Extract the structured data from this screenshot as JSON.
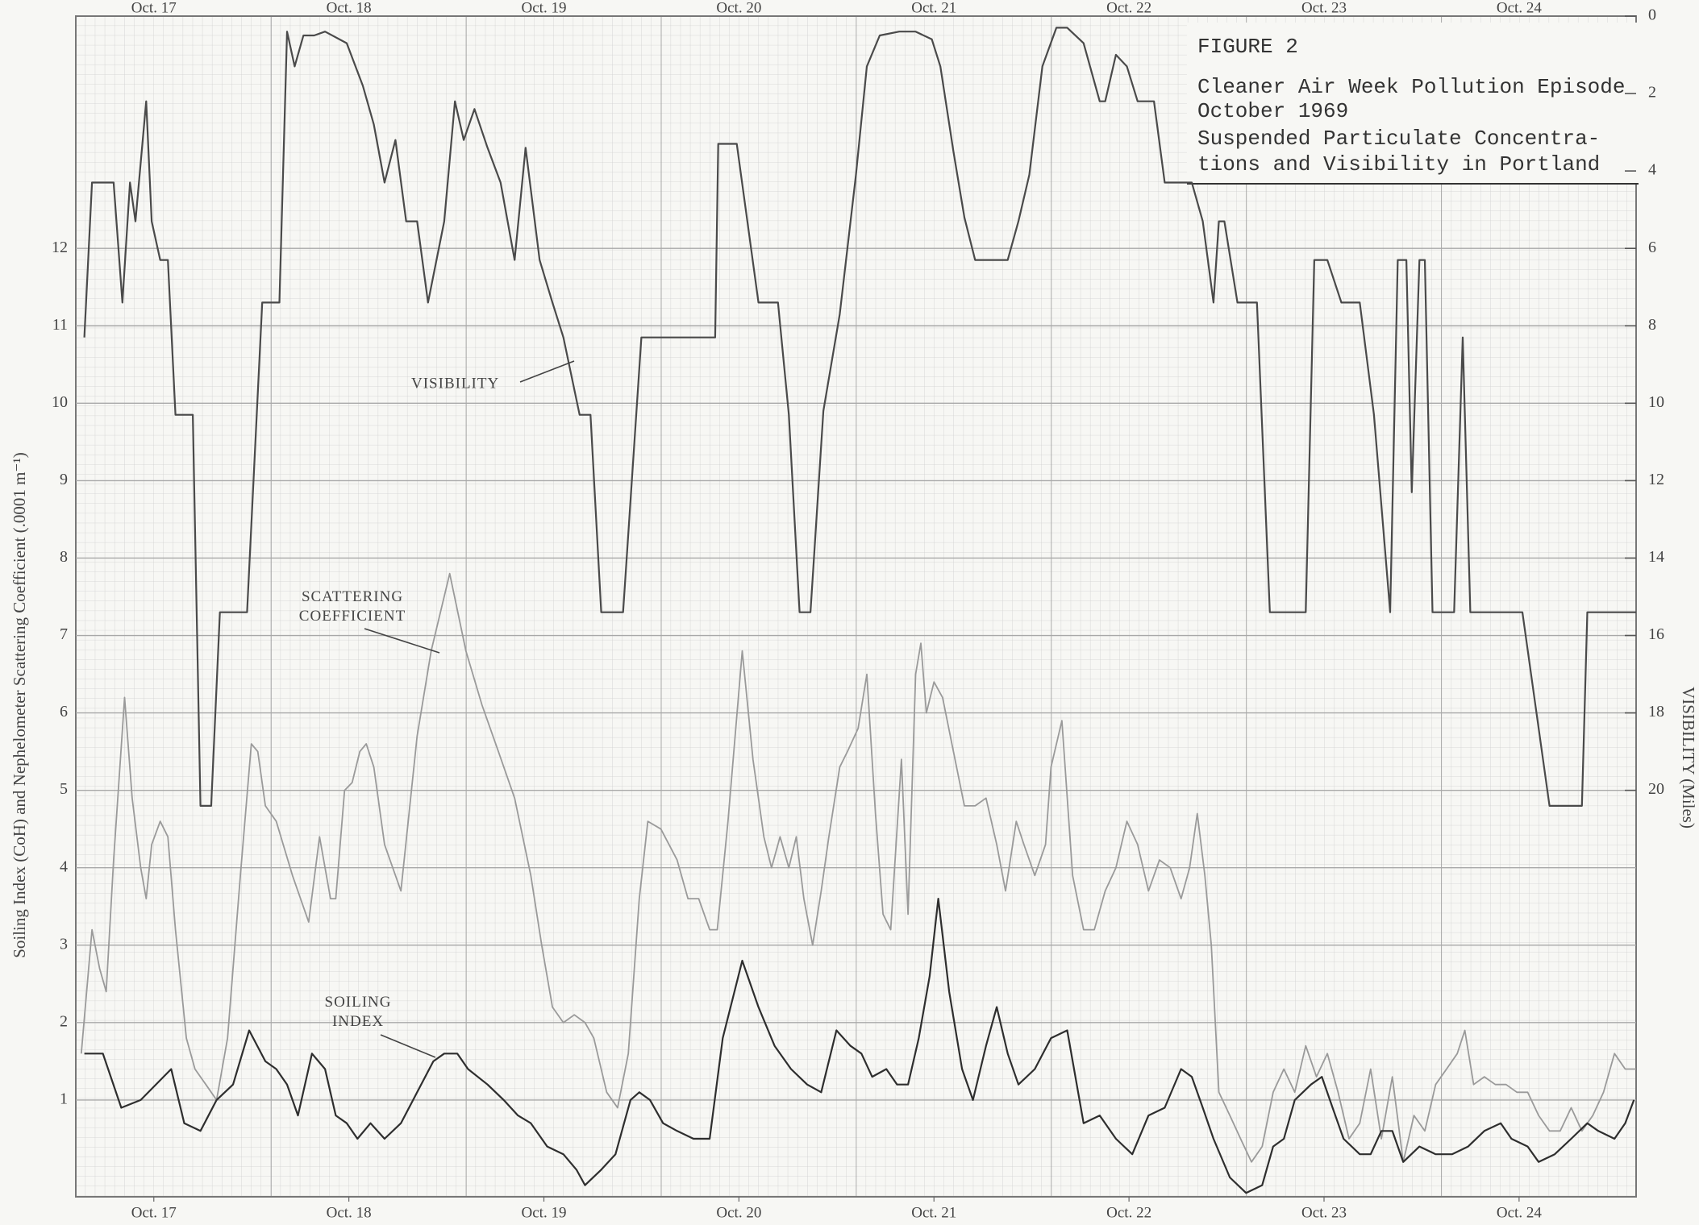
{
  "chart_data": {
    "type": "line",
    "title": "FIGURE 2",
    "subtitle": [
      "Cleaner Air Week Pollution Episode",
      "October 1969",
      "Suspended Particulate Concentra-",
      "tions and Visibility in Portland"
    ],
    "ylabel": "Soiling Index (CoH) and Nephelometer Scattering Coefficient (.0001 m⁻¹)",
    "y2label": "VISIBILITY (Miles)",
    "xlim": [
      0,
      8
    ],
    "xticks": [
      {
        "value": 0.4,
        "label": "Oct. 17"
      },
      {
        "value": 1.4,
        "label": "Oct. 18"
      },
      {
        "value": 2.4,
        "label": "Oct. 19"
      },
      {
        "value": 3.4,
        "label": "Oct. 20"
      },
      {
        "value": 4.4,
        "label": "Oct. 21"
      },
      {
        "value": 5.4,
        "label": "Oct. 22"
      },
      {
        "value": 6.4,
        "label": "Oct. 23"
      },
      {
        "value": 7.4,
        "label": "Oct. 24"
      }
    ],
    "ylim": [
      -0.25,
      15
    ],
    "yticks": [
      1,
      2,
      3,
      4,
      5,
      6,
      7,
      8,
      9,
      10,
      11,
      12
    ],
    "y2lim": [
      30.5,
      0
    ],
    "y2ticks": [
      0,
      2,
      4,
      6,
      8,
      10,
      12,
      14,
      16,
      18,
      20
    ],
    "grid": true,
    "series": [
      {
        "name": "VISIBILITY",
        "color": "#4a4a4a",
        "axis": "y2",
        "x": [
          0.044,
          0.083,
          0.194,
          0.239,
          0.278,
          0.306,
          0.361,
          0.389,
          0.433,
          0.472,
          0.511,
          0.6,
          0.639,
          0.694,
          0.739,
          0.878,
          0.956,
          1.044,
          1.083,
          1.122,
          1.167,
          1.222,
          1.278,
          1.389,
          1.472,
          1.528,
          1.583,
          1.639,
          1.694,
          1.75,
          1.806,
          1.889,
          1.944,
          1.989,
          2.044,
          2.111,
          2.178,
          2.25,
          2.306,
          2.378,
          2.444,
          2.5,
          2.583,
          2.639,
          2.694,
          2.806,
          2.9,
          3.278,
          3.294,
          3.389,
          3.5,
          3.6,
          3.656,
          3.711,
          3.767,
          3.833,
          3.917,
          4.0,
          4.056,
          4.122,
          4.222,
          4.306,
          4.389,
          4.433,
          4.5,
          4.556,
          4.611,
          4.778,
          4.833,
          4.889,
          4.956,
          5.028,
          5.083,
          5.167,
          5.25,
          5.278,
          5.333,
          5.389,
          5.444,
          5.528,
          5.583,
          5.722,
          5.778,
          5.833,
          5.861,
          5.889,
          5.956,
          6.056,
          6.122,
          6.306,
          6.35,
          6.417,
          6.489,
          6.583,
          6.656,
          6.739,
          6.778,
          6.822,
          6.85,
          6.889,
          6.917,
          6.956,
          7.067,
          7.111,
          7.15,
          7.417,
          7.556,
          7.722,
          7.75,
          8.0
        ],
        "values": [
          8.3,
          4.3,
          4.3,
          7.4,
          4.3,
          5.3,
          2.2,
          5.3,
          6.3,
          6.3,
          10.3,
          10.3,
          20.4,
          20.4,
          15.4,
          15.4,
          7.4,
          7.4,
          0.4,
          1.3,
          0.5,
          0.5,
          0.4,
          0.7,
          1.8,
          2.8,
          4.3,
          3.2,
          5.3,
          5.3,
          7.4,
          5.3,
          2.2,
          3.2,
          2.4,
          3.4,
          4.3,
          6.3,
          3.4,
          6.3,
          7.4,
          8.3,
          10.3,
          10.3,
          15.4,
          15.4,
          8.3,
          8.3,
          3.3,
          3.3,
          7.4,
          7.4,
          10.3,
          15.4,
          15.4,
          10.2,
          7.7,
          4.1,
          1.3,
          0.5,
          0.4,
          0.4,
          0.6,
          1.3,
          3.5,
          5.2,
          6.3,
          6.3,
          5.3,
          4.1,
          1.3,
          0.3,
          0.3,
          0.7,
          2.2,
          2.2,
          1.0,
          1.3,
          2.2,
          2.2,
          4.3,
          4.3,
          5.3,
          7.4,
          5.3,
          5.3,
          7.4,
          7.4,
          15.4,
          15.4,
          6.3,
          6.3,
          7.4,
          7.4,
          10.3,
          15.4,
          6.3,
          6.3,
          12.3,
          6.3,
          6.3,
          15.4,
          15.4,
          8.3,
          15.4,
          15.4,
          20.4,
          20.4,
          15.4,
          15.4
        ]
      },
      {
        "name": "SCATTERING COEFFICIENT",
        "color": "#9a9a9a",
        "x": [
          0.028,
          0.083,
          0.122,
          0.156,
          0.194,
          0.25,
          0.289,
          0.333,
          0.361,
          0.389,
          0.433,
          0.472,
          0.511,
          0.567,
          0.611,
          0.667,
          0.722,
          0.778,
          0.844,
          0.9,
          0.933,
          0.972,
          1.028,
          1.111,
          1.194,
          1.25,
          1.306,
          1.333,
          1.378,
          1.417,
          1.456,
          1.489,
          1.528,
          1.583,
          1.667,
          1.75,
          1.822,
          1.917,
          2.0,
          2.083,
          2.167,
          2.25,
          2.333,
          2.389,
          2.444,
          2.5,
          2.556,
          2.611,
          2.656,
          2.722,
          2.778,
          2.833,
          2.889,
          2.933,
          3.0,
          3.083,
          3.139,
          3.194,
          3.25,
          3.289,
          3.344,
          3.417,
          3.472,
          3.528,
          3.567,
          3.611,
          3.656,
          3.694,
          3.733,
          3.778,
          3.822,
          3.861,
          3.917,
          3.956,
          4.011,
          4.056,
          4.1,
          4.139,
          4.178,
          4.233,
          4.267,
          4.306,
          4.333,
          4.361,
          4.4,
          4.444,
          4.5,
          4.556,
          4.611,
          4.667,
          4.722,
          4.767,
          4.822,
          4.861,
          4.917,
          4.972,
          5.0,
          5.056,
          5.111,
          5.167,
          5.222,
          5.278,
          5.333,
          5.389,
          5.444,
          5.5,
          5.556,
          5.611,
          5.667,
          5.711,
          5.75,
          5.789,
          5.822,
          5.861,
          5.917,
          5.972,
          6.028,
          6.083,
          6.139,
          6.194,
          6.25,
          6.306,
          6.361,
          6.417,
          6.472,
          6.528,
          6.583,
          6.639,
          6.694,
          6.75,
          6.806,
          6.861,
          6.917,
          6.972,
          7.028,
          7.083,
          7.122,
          7.167,
          7.222,
          7.278,
          7.333,
          7.389,
          7.444,
          7.5,
          7.556,
          7.611,
          7.667,
          7.722,
          7.778,
          7.833,
          7.889,
          7.944,
          8.0
        ],
        "values": [
          1.6,
          3.2,
          2.7,
          2.4,
          4.1,
          6.2,
          4.9,
          4.0,
          3.6,
          4.3,
          4.6,
          4.4,
          3.2,
          1.8,
          1.4,
          1.2,
          1.0,
          1.8,
          3.9,
          5.6,
          5.5,
          4.8,
          4.6,
          3.9,
          3.3,
          4.4,
          3.6,
          3.6,
          5.0,
          5.1,
          5.5,
          5.6,
          5.3,
          4.3,
          3.7,
          5.7,
          6.8,
          7.8,
          6.8,
          6.1,
          5.5,
          4.9,
          3.9,
          3.0,
          2.2,
          2.0,
          2.1,
          2.0,
          1.8,
          1.1,
          0.9,
          1.6,
          3.6,
          4.6,
          4.5,
          4.1,
          3.6,
          3.6,
          3.2,
          3.2,
          4.6,
          6.8,
          5.4,
          4.4,
          4.0,
          4.4,
          4.0,
          4.4,
          3.6,
          3.0,
          3.7,
          4.4,
          5.3,
          5.5,
          5.8,
          6.5,
          4.7,
          3.4,
          3.2,
          5.4,
          3.4,
          6.5,
          6.9,
          6.0,
          6.4,
          6.2,
          5.5,
          4.8,
          4.8,
          4.9,
          4.3,
          3.7,
          4.6,
          4.3,
          3.9,
          4.3,
          5.3,
          5.9,
          3.9,
          3.2,
          3.2,
          3.7,
          4.0,
          4.6,
          4.3,
          3.7,
          4.1,
          4.0,
          3.6,
          4.0,
          4.7,
          3.9,
          3.0,
          1.1,
          0.8,
          0.5,
          0.2,
          0.4,
          1.1,
          1.4,
          1.1,
          1.7,
          1.3,
          1.6,
          1.1,
          0.5,
          0.7,
          1.4,
          0.5,
          1.3,
          0.2,
          0.8,
          0.6,
          1.2,
          1.4,
          1.6,
          1.9,
          1.2,
          1.3,
          1.2,
          1.2,
          1.1,
          1.1,
          0.8,
          0.6,
          0.6,
          0.9,
          0.6,
          0.8,
          1.1,
          1.6,
          1.4,
          1.4
        ]
      },
      {
        "name": "SOILING INDEX",
        "color": "#2e2e2e",
        "x": [
          0.044,
          0.139,
          0.233,
          0.333,
          0.489,
          0.556,
          0.639,
          0.722,
          0.806,
          0.889,
          0.972,
          1.028,
          1.083,
          1.139,
          1.211,
          1.278,
          1.333,
          1.389,
          1.444,
          1.511,
          1.583,
          1.667,
          1.75,
          1.833,
          1.889,
          1.956,
          2.011,
          2.111,
          2.194,
          2.267,
          2.333,
          2.417,
          2.5,
          2.567,
          2.611,
          2.694,
          2.767,
          2.844,
          2.889,
          2.944,
          3.011,
          3.083,
          3.167,
          3.25,
          3.317,
          3.417,
          3.5,
          3.583,
          3.667,
          3.75,
          3.822,
          3.9,
          3.972,
          4.028,
          4.083,
          4.156,
          4.211,
          4.267,
          4.322,
          4.378,
          4.422,
          4.478,
          4.544,
          4.6,
          4.667,
          4.722,
          4.778,
          4.833,
          4.917,
          5.0,
          5.083,
          5.167,
          5.25,
          5.333,
          5.417,
          5.5,
          5.583,
          5.667,
          5.722,
          5.778,
          5.833,
          5.917,
          6.0,
          6.083,
          6.139,
          6.194,
          6.25,
          6.333,
          6.389,
          6.444,
          6.5,
          6.583,
          6.639,
          6.694,
          6.75,
          6.806,
          6.889,
          6.972,
          7.056,
          7.139,
          7.222,
          7.306,
          7.361,
          7.444,
          7.5,
          7.583,
          7.667,
          7.75,
          7.806,
          7.889,
          7.944,
          7.989
        ],
        "values": [
          1.6,
          1.6,
          0.9,
          1.0,
          1.4,
          0.7,
          0.6,
          1.0,
          1.2,
          1.9,
          1.5,
          1.4,
          1.2,
          0.8,
          1.6,
          1.4,
          0.8,
          0.7,
          0.5,
          0.7,
          0.5,
          0.7,
          1.1,
          1.5,
          1.6,
          1.6,
          1.4,
          1.2,
          1.0,
          0.8,
          0.7,
          0.4,
          0.3,
          0.1,
          -0.1,
          0.1,
          0.3,
          1.0,
          1.1,
          1.0,
          0.7,
          0.6,
          0.5,
          0.5,
          1.8,
          2.8,
          2.2,
          1.7,
          1.4,
          1.2,
          1.1,
          1.9,
          1.7,
          1.6,
          1.3,
          1.4,
          1.2,
          1.2,
          1.8,
          2.6,
          3.6,
          2.4,
          1.4,
          1.0,
          1.7,
          2.2,
          1.6,
          1.2,
          1.4,
          1.8,
          1.9,
          0.7,
          0.8,
          0.5,
          0.3,
          0.8,
          0.9,
          1.4,
          1.3,
          0.9,
          0.5,
          0.0,
          -0.2,
          -0.1,
          0.4,
          0.5,
          1.0,
          1.2,
          1.3,
          0.9,
          0.5,
          0.3,
          0.3,
          0.6,
          0.6,
          0.2,
          0.4,
          0.3,
          0.3,
          0.4,
          0.6,
          0.7,
          0.5,
          0.4,
          0.2,
          0.3,
          0.5,
          0.7,
          0.6,
          0.5,
          0.7,
          1.0
        ]
      }
    ]
  }
}
